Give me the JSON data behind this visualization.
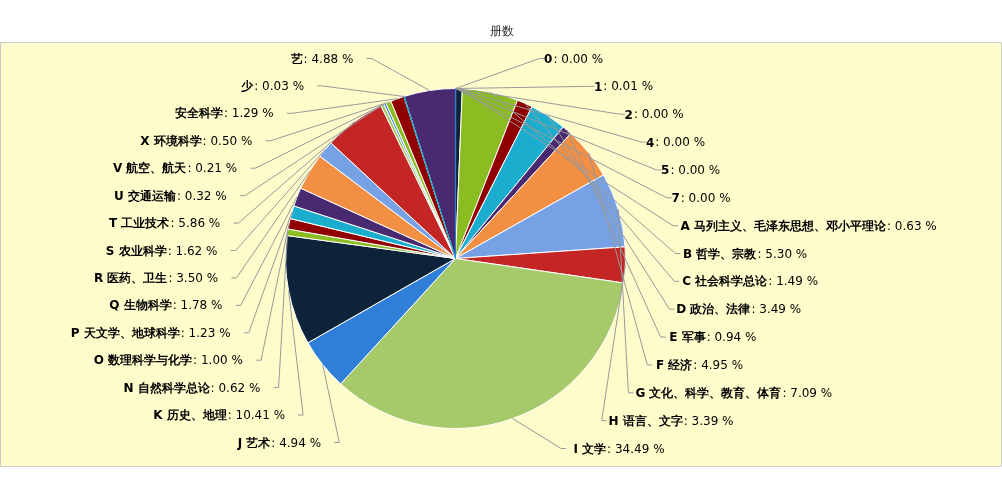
{
  "chart_data": {
    "type": "pie",
    "title": "册数",
    "categories": [
      "0",
      "1",
      "2",
      "4",
      "5",
      "7",
      "A 马列主义、毛泽东思想、邓小平理论",
      "B 哲学、宗教",
      "C 社会科学总论",
      "D 政治、法律",
      "E 军事",
      "F 经济",
      "G 文化、科学、教育、体育",
      "H 语言、文字",
      "I 文学",
      "J 艺术",
      "K 历史、地理",
      "N 自然科学总论",
      "O 数理科学与化学",
      "P 天文学、地球科学",
      "Q 生物科学",
      "R 医药、卫生",
      "S 农业科学",
      "T 工业技术",
      "U 交通运输",
      "V 航空、航天",
      "X 环境科学",
      "安全科学",
      "少",
      "艺"
    ],
    "values": [
      0.0,
      0.01,
      0.0,
      0.0,
      0.0,
      0.0,
      0.63,
      5.3,
      1.49,
      3.49,
      0.94,
      4.95,
      7.09,
      3.39,
      34.49,
      4.94,
      10.41,
      0.62,
      1.0,
      1.23,
      1.78,
      3.5,
      1.62,
      5.86,
      0.32,
      0.21,
      0.5,
      1.29,
      0.03,
      4.88
    ],
    "colors": [
      "#2f7ed8",
      "#2f7ed8",
      "#8bbc21",
      "#910000",
      "#1aadce",
      "#492970",
      "#0d233a",
      "#8bbc21",
      "#910000",
      "#1aadce",
      "#492970",
      "#f28f43",
      "#77a1e5",
      "#c42525",
      "#a6c96a",
      "#2f7ed8",
      "#0d233a",
      "#8bbc21",
      "#910000",
      "#1aadce",
      "#492970",
      "#f28f43",
      "#77a1e5",
      "#c42525",
      "#a6c96a",
      "#2f7ed8",
      "#8bbc21",
      "#910000",
      "#1aadce",
      "#492970"
    ],
    "value_labels": [
      ": 0.00 %",
      ": 0.01 %",
      ": 0.00 %",
      ": 0.00 %",
      ": 0.00 %",
      ": 0.00 %",
      ": 0.63 %",
      ": 5.30 %",
      ": 1.49 %",
      ": 3.49 %",
      ": 0.94 %",
      ": 4.95 %",
      ": 7.09 %",
      ": 3.39 %",
      ": 34.49 %",
      ": 4.94 %",
      ": 10.41 %",
      ": 0.62 %",
      ": 1.00 %",
      ": 1.23 %",
      ": 1.78 %",
      ": 3.50 %",
      ": 1.62 %",
      ": 5.86 %",
      ": 0.32 %",
      ": 0.21 %",
      ": 0.50 %",
      ": 1.29 %",
      ": 0.03 %",
      ": 4.88 %"
    ]
  }
}
